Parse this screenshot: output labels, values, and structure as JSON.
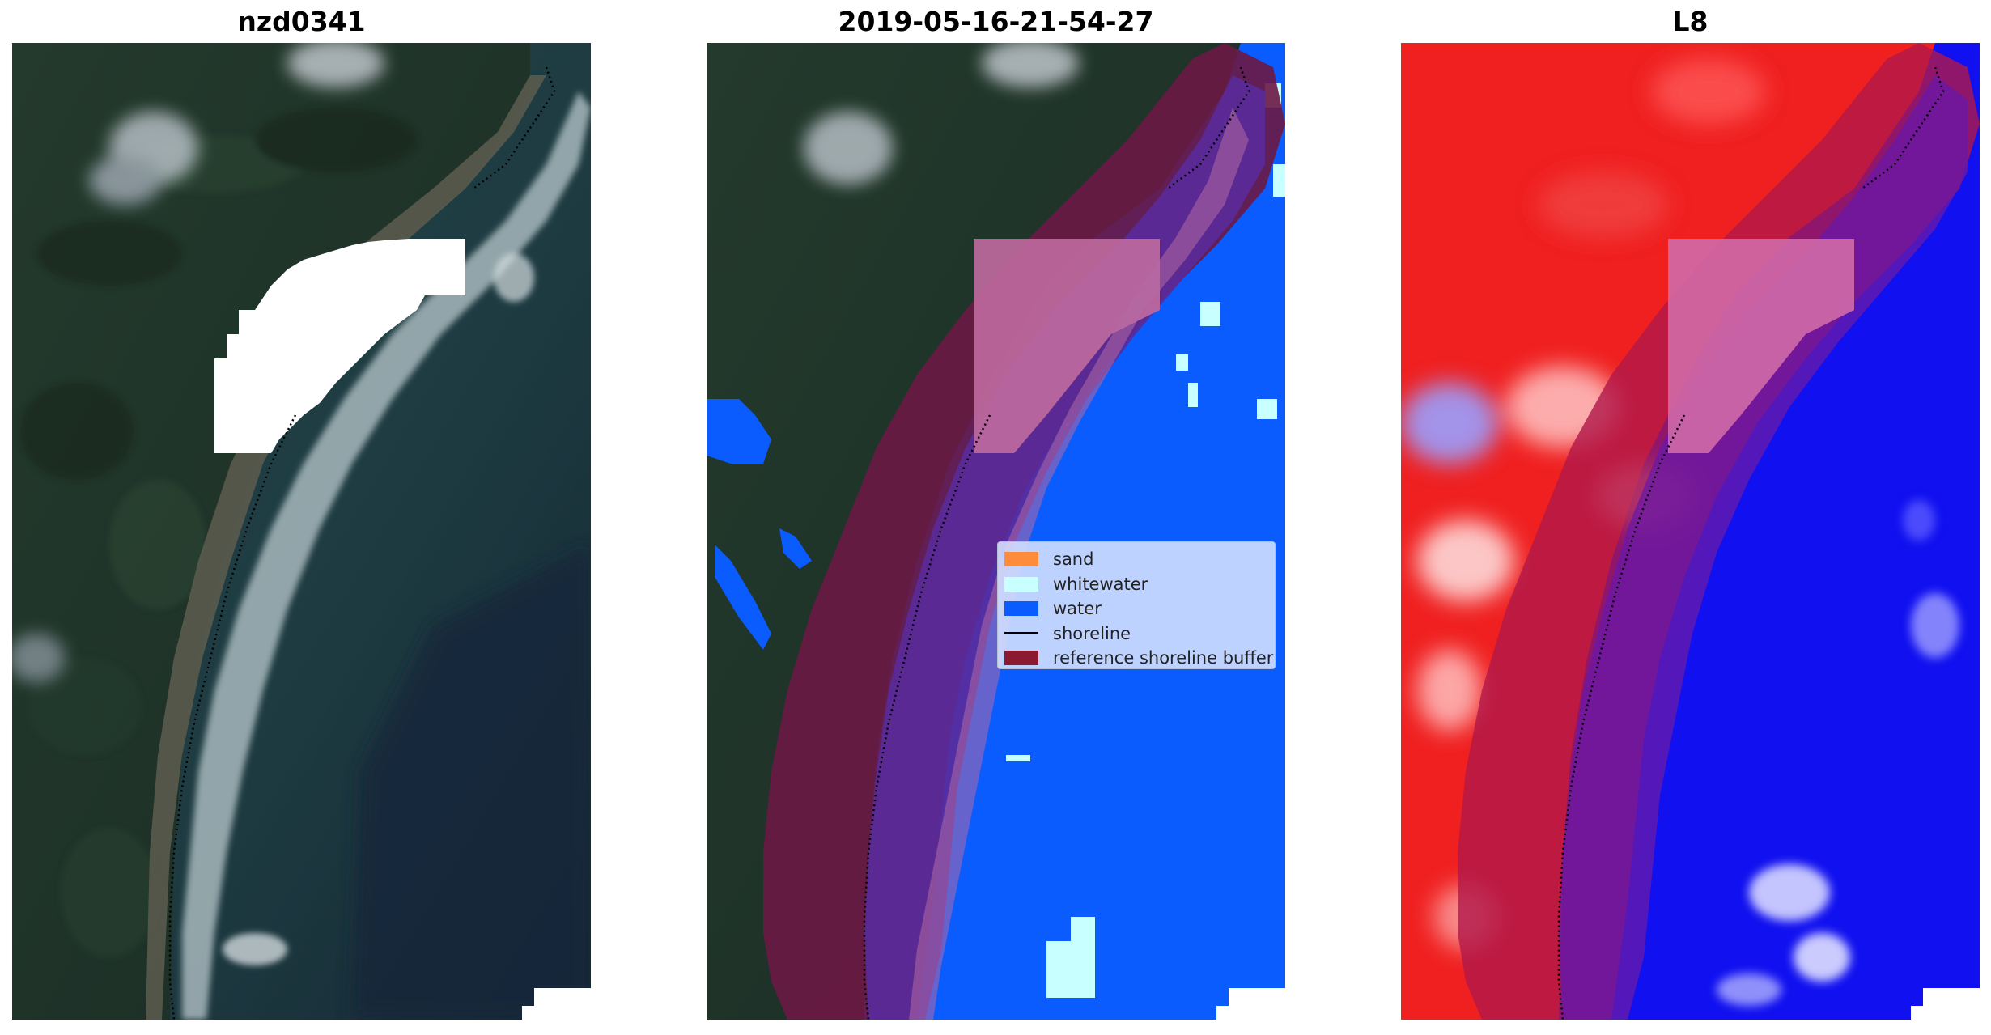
{
  "panels": [
    {
      "title": "nzd0341"
    },
    {
      "title": "2019-05-16-21-54-27"
    },
    {
      "title": "L8"
    }
  ],
  "legend": {
    "items": [
      {
        "label": "sand",
        "color": "#ff8c3a"
      },
      {
        "label": "whitewater",
        "color": "#c8ffff"
      },
      {
        "label": "water",
        "color": "#0a5cff"
      },
      {
        "label": "shoreline",
        "color": "#000000"
      },
      {
        "label": "reference shoreline buffer",
        "color": "#8b1a2e"
      }
    ]
  },
  "colors": {
    "land": "#1f3328",
    "ocean": "#1d3b3f",
    "deep_ocean": "#172a35",
    "water_class": "#0a5cff",
    "buffer": "#8b1a3e",
    "cloud_mask": "#ffffff",
    "index_high": "#ff0000",
    "index_low": "#0000ff"
  }
}
